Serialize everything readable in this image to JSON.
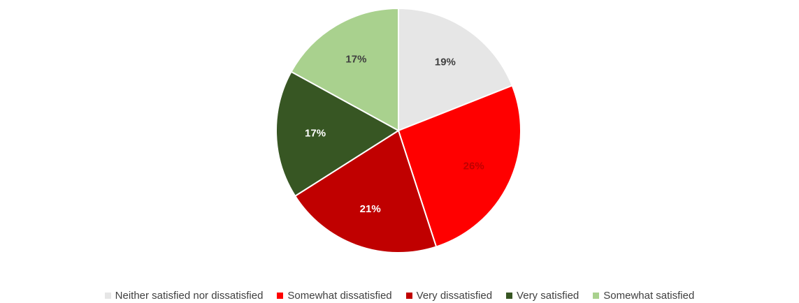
{
  "chart_data": {
    "type": "pie",
    "title": "",
    "slices": [
      {
        "label": "Neither satisfied nor dissatisfied",
        "value": 19,
        "value_label": "19%",
        "color": "#e6e6e6",
        "label_color": "#404040"
      },
      {
        "label": "Somewhat dissatisfied",
        "value": 26,
        "value_label": "26%",
        "color": "#ff0000",
        "label_color": "#c00000"
      },
      {
        "label": "Very dissatisfied",
        "value": 21,
        "value_label": "21%",
        "color": "#c00000",
        "label_color": "#ffffff"
      },
      {
        "label": "Very satisfied",
        "value": 17,
        "value_label": "17%",
        "color": "#375623",
        "label_color": "#ffffff"
      },
      {
        "label": "Somewhat satisfied",
        "value": 17,
        "value_label": "17%",
        "color": "#a9d18e",
        "label_color": "#404040"
      }
    ],
    "start_angle": "12 o'clock",
    "direction": "clockwise",
    "legend": "bottom"
  }
}
